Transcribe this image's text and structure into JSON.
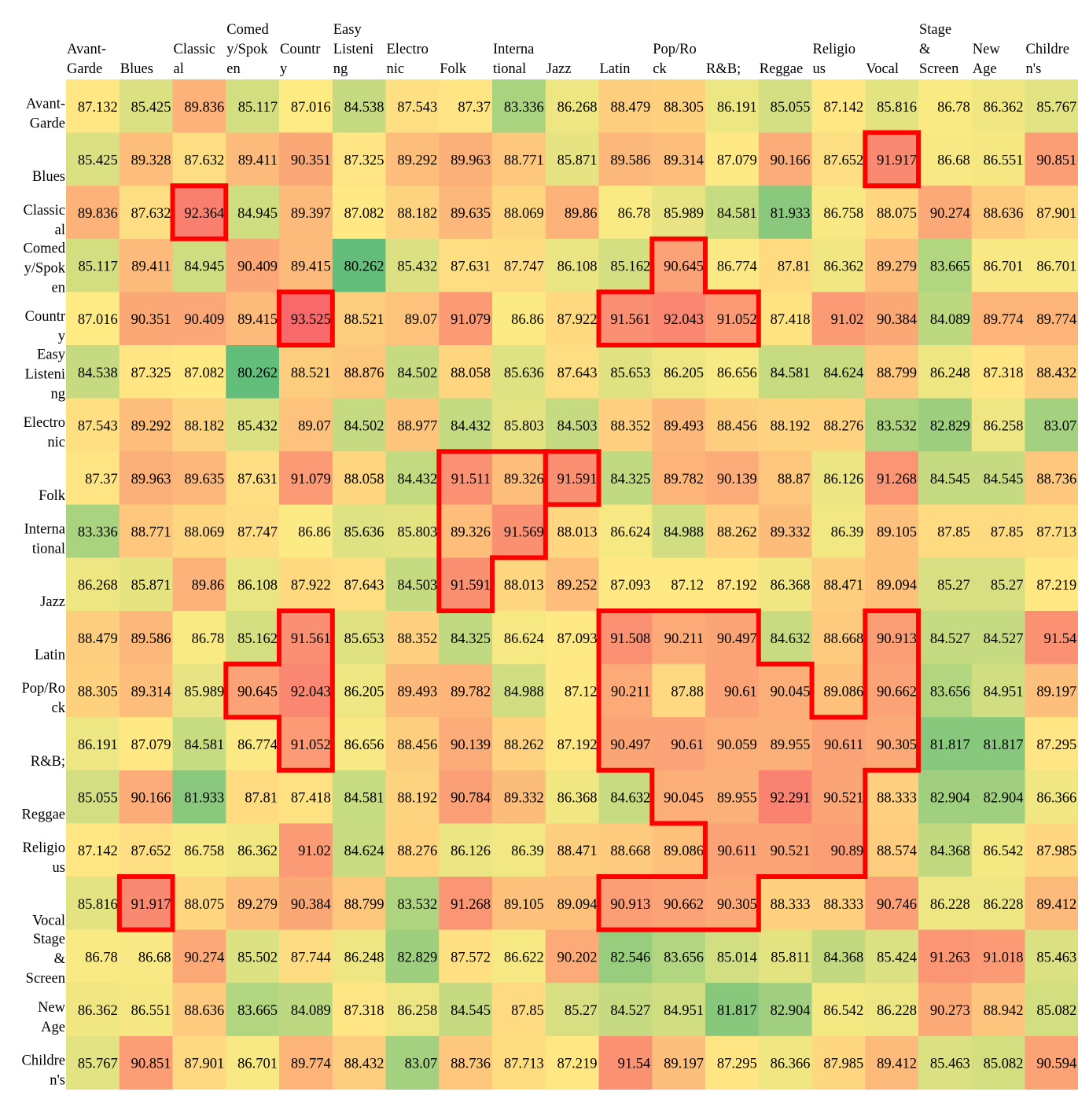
{
  "chart_data": {
    "type": "heatmap",
    "title": "",
    "xlabel": "",
    "ylabel": "",
    "x_categories": [
      "Avant-Garde",
      "Blues",
      "Classical",
      "Comedy/Spoken",
      "Country",
      "Easy Listening",
      "Electronic",
      "Folk",
      "International",
      "Jazz",
      "Latin",
      "Pop/Rock",
      "R&B;",
      "Reggae",
      "Religious",
      "Vocal",
      "Stage & Screen",
      "New Age",
      "Children's"
    ],
    "y_categories": [
      "Avant-Garde",
      "Blues",
      "Classical",
      "Comedy/Spoken",
      "Country",
      "Easy Listening",
      "Electronic",
      "Folk",
      "International",
      "Jazz",
      "Latin",
      "Pop/Rock",
      "R&B;",
      "Reggae",
      "Religious",
      "Vocal",
      "Stage & Screen",
      "New Age",
      "Children's"
    ],
    "x_label_lines": [
      [
        "Avant-",
        "Garde"
      ],
      [
        "Blues"
      ],
      [
        "Classic",
        "al"
      ],
      [
        "Comed",
        "y/Spok",
        "en"
      ],
      [
        "Countr",
        "y"
      ],
      [
        "Easy",
        "Listeni",
        "ng"
      ],
      [
        "Electro",
        "nic"
      ],
      [
        "Folk"
      ],
      [
        "Interna",
        "tional"
      ],
      [
        "Jazz"
      ],
      [
        "Latin"
      ],
      [
        "Pop/Ro",
        "ck"
      ],
      [
        "R&B;"
      ],
      [
        "Reggae"
      ],
      [
        "Religio",
        "us"
      ],
      [
        "Vocal"
      ],
      [
        "Stage",
        "&",
        "Screen"
      ],
      [
        "New",
        "Age"
      ],
      [
        "Childre",
        "n's"
      ]
    ],
    "y_label_lines": [
      [
        "Avant-",
        "Garde"
      ],
      [
        "Blues"
      ],
      [
        "Classic",
        "al"
      ],
      [
        "Comed",
        "y/Spok",
        "en"
      ],
      [
        "Countr",
        "y"
      ],
      [
        "Easy",
        "Listeni",
        "ng"
      ],
      [
        "Electro",
        "nic"
      ],
      [
        "Folk"
      ],
      [
        "Interna",
        "tional"
      ],
      [
        "Jazz"
      ],
      [
        "Latin"
      ],
      [
        "Pop/Ro",
        "ck"
      ],
      [
        "R&B;"
      ],
      [
        "Reggae"
      ],
      [
        "Religio",
        "us"
      ],
      [
        "Vocal"
      ],
      [
        "Stage",
        "&",
        "Screen"
      ],
      [
        "New",
        "Age"
      ],
      [
        "Childre",
        "n's"
      ]
    ],
    "values": [
      [
        87.132,
        85.425,
        89.836,
        85.117,
        87.016,
        84.538,
        87.543,
        87.37,
        83.336,
        86.268,
        88.479,
        88.305,
        86.191,
        85.055,
        87.142,
        85.816,
        86.78,
        86.362,
        85.767
      ],
      [
        85.425,
        89.328,
        87.632,
        89.411,
        90.351,
        87.325,
        89.292,
        89.963,
        88.771,
        85.871,
        89.586,
        89.314,
        87.079,
        90.166,
        87.652,
        91.917,
        86.68,
        86.551,
        90.851
      ],
      [
        89.836,
        87.632,
        92.364,
        84.945,
        89.397,
        87.082,
        88.182,
        89.635,
        88.069,
        89.86,
        86.78,
        85.989,
        84.581,
        81.933,
        86.758,
        88.075,
        90.274,
        88.636,
        87.901
      ],
      [
        85.117,
        89.411,
        84.945,
        90.409,
        89.415,
        80.262,
        85.432,
        87.631,
        87.747,
        86.108,
        85.162,
        90.645,
        86.774,
        87.81,
        86.362,
        89.279,
        83.665,
        86.701,
        86.701
      ],
      [
        87.016,
        90.351,
        90.409,
        89.415,
        93.525,
        88.521,
        89.07,
        91.079,
        86.86,
        87.922,
        91.561,
        92.043,
        91.052,
        87.418,
        91.02,
        90.384,
        84.089,
        89.774,
        89.774
      ],
      [
        84.538,
        87.325,
        87.082,
        80.262,
        88.521,
        88.876,
        84.502,
        88.058,
        85.636,
        87.643,
        85.653,
        86.205,
        86.656,
        84.581,
        84.624,
        88.799,
        86.248,
        87.318,
        88.432
      ],
      [
        87.543,
        89.292,
        88.182,
        85.432,
        89.07,
        84.502,
        88.977,
        84.432,
        85.803,
        84.503,
        88.352,
        89.493,
        88.456,
        88.192,
        88.276,
        83.532,
        82.829,
        86.258,
        83.07
      ],
      [
        87.37,
        89.963,
        89.635,
        87.631,
        91.079,
        88.058,
        84.432,
        91.511,
        89.326,
        91.591,
        84.325,
        89.782,
        90.139,
        88.87,
        86.126,
        91.268,
        84.545,
        84.545,
        88.736
      ],
      [
        83.336,
        88.771,
        88.069,
        87.747,
        86.86,
        85.636,
        85.803,
        89.326,
        91.569,
        88.013,
        86.624,
        84.988,
        88.262,
        89.332,
        86.39,
        89.105,
        87.85,
        87.85,
        87.713
      ],
      [
        86.268,
        85.871,
        89.86,
        86.108,
        87.922,
        87.643,
        84.503,
        91.591,
        88.013,
        89.252,
        87.093,
        87.12,
        87.192,
        86.368,
        88.471,
        89.094,
        85.27,
        85.27,
        87.219
      ],
      [
        88.479,
        89.586,
        86.78,
        85.162,
        91.561,
        85.653,
        88.352,
        84.325,
        86.624,
        87.093,
        91.508,
        90.211,
        90.497,
        84.632,
        88.668,
        90.913,
        84.527,
        84.527,
        91.54
      ],
      [
        88.305,
        89.314,
        85.989,
        90.645,
        92.043,
        86.205,
        89.493,
        89.782,
        84.988,
        87.12,
        90.211,
        87.88,
        90.61,
        90.045,
        89.086,
        90.662,
        83.656,
        84.951,
        89.197
      ],
      [
        86.191,
        87.079,
        84.581,
        86.774,
        91.052,
        86.656,
        88.456,
        90.139,
        88.262,
        87.192,
        90.497,
        90.61,
        90.059,
        89.955,
        90.611,
        90.305,
        81.817,
        81.817,
        87.295
      ],
      [
        85.055,
        90.166,
        81.933,
        87.81,
        87.418,
        84.581,
        88.192,
        90.784,
        89.332,
        86.368,
        84.632,
        90.045,
        89.955,
        92.291,
        90.521,
        88.333,
        82.904,
        82.904,
        86.366
      ],
      [
        87.142,
        87.652,
        86.758,
        86.362,
        91.02,
        84.624,
        88.276,
        86.126,
        86.39,
        88.471,
        88.668,
        89.086,
        90.611,
        90.521,
        90.89,
        88.574,
        84.368,
        86.542,
        87.985
      ],
      [
        85.816,
        91.917,
        88.075,
        89.279,
        90.384,
        88.799,
        83.532,
        91.268,
        89.105,
        89.094,
        90.913,
        90.662,
        90.305,
        88.333,
        88.333,
        90.746,
        86.228,
        86.228,
        89.412
      ],
      [
        86.78,
        86.68,
        90.274,
        85.502,
        87.744,
        86.248,
        82.829,
        87.572,
        86.622,
        90.202,
        82.546,
        83.656,
        85.014,
        85.811,
        84.368,
        85.424,
        91.263,
        91.018,
        85.463
      ],
      [
        86.362,
        86.551,
        88.636,
        83.665,
        84.089,
        87.318,
        86.258,
        84.545,
        87.85,
        85.27,
        84.527,
        84.951,
        81.817,
        82.904,
        86.542,
        86.228,
        90.273,
        88.942,
        85.082
      ],
      [
        85.767,
        90.851,
        87.901,
        86.701,
        89.774,
        88.432,
        83.07,
        88.736,
        87.713,
        87.219,
        91.54,
        89.197,
        87.295,
        86.366,
        87.985,
        89.412,
        85.463,
        85.082,
        90.594
      ]
    ],
    "color_scale": {
      "low": "#63be7b",
      "mid": "#ffeb84",
      "high": "#f8696b",
      "domain": [
        80.262,
        87.0,
        93.525
      ]
    },
    "highlight_color": "#ff0000",
    "highlight_regions": [
      [
        [
          1,
          15
        ]
      ],
      [
        [
          2,
          2
        ]
      ],
      [
        [
          4,
          4
        ]
      ],
      [
        [
          3,
          11
        ],
        [
          4,
          10
        ],
        [
          4,
          11
        ],
        [
          4,
          12
        ]
      ],
      [
        [
          7,
          7
        ],
        [
          7,
          8
        ],
        [
          8,
          7
        ],
        [
          8,
          8
        ],
        [
          9,
          7
        ]
      ],
      [
        [
          7,
          9
        ]
      ],
      [
        [
          10,
          4
        ],
        [
          11,
          3
        ],
        [
          11,
          4
        ],
        [
          12,
          4
        ]
      ],
      [
        [
          10,
          10
        ],
        [
          10,
          11
        ],
        [
          10,
          12
        ],
        [
          10,
          15
        ],
        [
          11,
          10
        ],
        [
          11,
          11
        ],
        [
          11,
          12
        ],
        [
          11,
          13
        ],
        [
          11,
          15
        ],
        [
          12,
          10
        ],
        [
          12,
          11
        ],
        [
          12,
          12
        ],
        [
          12,
          13
        ],
        [
          12,
          14
        ],
        [
          12,
          15
        ],
        [
          13,
          11
        ],
        [
          13,
          12
        ],
        [
          13,
          13
        ],
        [
          13,
          14
        ],
        [
          14,
          12
        ],
        [
          14,
          13
        ],
        [
          14,
          14
        ],
        [
          15,
          10
        ],
        [
          15,
          11
        ],
        [
          15,
          12
        ]
      ],
      [
        [
          15,
          1
        ]
      ]
    ],
    "grid": false,
    "legend": "none"
  }
}
